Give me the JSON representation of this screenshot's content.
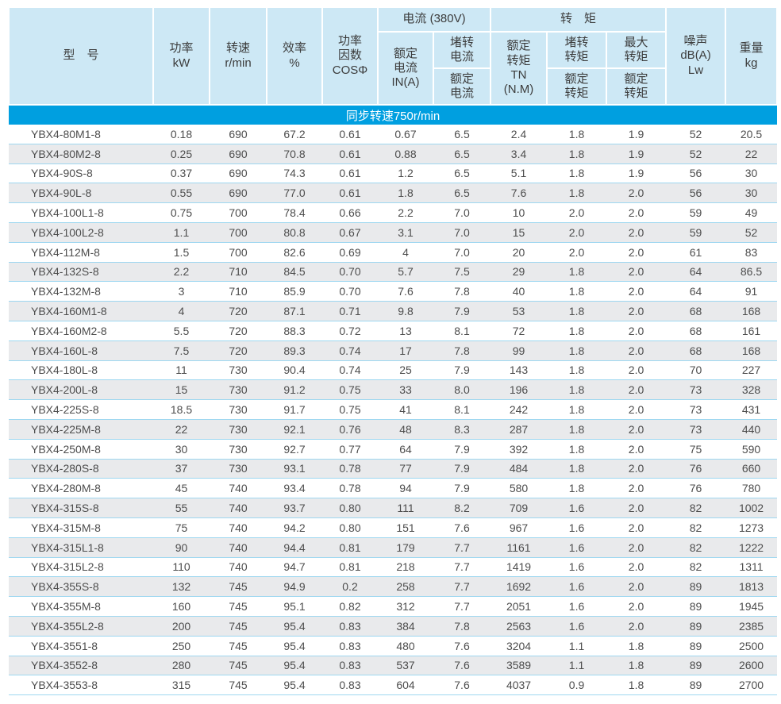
{
  "table": {
    "header": {
      "model": "型　号",
      "power": "功率\nkW",
      "speed": "转速\nr/min",
      "efficiency": "效率\n%",
      "power_factor": "功率\n因数\nCOSΦ",
      "current_group": "电流 (380V)",
      "rated_current": "额定\n电流\nIN(A)",
      "locked_current_top": "堵转\n电流",
      "locked_current_bottom": "额定\n电流",
      "torque_group": "转　矩",
      "rated_torque": "额定\n转矩\nTN\n(N.M)",
      "locked_torque_top": "堵转\n转矩",
      "locked_torque_bottom": "额定\n转矩",
      "max_torque_top": "最大\n转矩",
      "max_torque_bottom": "额定\n转矩",
      "noise": "噪声\ndB(A)\nLw",
      "weight": "重量\nkg"
    },
    "band_label": "同步转速750r/min",
    "rows": [
      [
        "YBX4-80M1-8",
        "0.18",
        "690",
        "67.2",
        "0.61",
        "0.67",
        "6.5",
        "2.4",
        "1.8",
        "1.9",
        "52",
        "20.5"
      ],
      [
        "YBX4-80M2-8",
        "0.25",
        "690",
        "70.8",
        "0.61",
        "0.88",
        "6.5",
        "3.4",
        "1.8",
        "1.9",
        "52",
        "22"
      ],
      [
        "YBX4-90S-8",
        "0.37",
        "690",
        "74.3",
        "0.61",
        "1.2",
        "6.5",
        "5.1",
        "1.8",
        "1.9",
        "56",
        "30"
      ],
      [
        "YBX4-90L-8",
        "0.55",
        "690",
        "77.0",
        "0.61",
        "1.8",
        "6.5",
        "7.6",
        "1.8",
        "2.0",
        "56",
        "30"
      ],
      [
        "YBX4-100L1-8",
        "0.75",
        "700",
        "78.4",
        "0.66",
        "2.2",
        "7.0",
        "10",
        "2.0",
        "2.0",
        "59",
        "49"
      ],
      [
        "YBX4-100L2-8",
        "1.1",
        "700",
        "80.8",
        "0.67",
        "3.1",
        "7.0",
        "15",
        "2.0",
        "2.0",
        "59",
        "52"
      ],
      [
        "YBX4-112M-8",
        "1.5",
        "700",
        "82.6",
        "0.69",
        "4",
        "7.0",
        "20",
        "2.0",
        "2.0",
        "61",
        "83"
      ],
      [
        "YBX4-132S-8",
        "2.2",
        "710",
        "84.5",
        "0.70",
        "5.7",
        "7.5",
        "29",
        "1.8",
        "2.0",
        "64",
        "86.5"
      ],
      [
        "YBX4-132M-8",
        "3",
        "710",
        "85.9",
        "0.70",
        "7.6",
        "7.8",
        "40",
        "1.8",
        "2.0",
        "64",
        "91"
      ],
      [
        "YBX4-160M1-8",
        "4",
        "720",
        "87.1",
        "0.71",
        "9.8",
        "7.9",
        "53",
        "1.8",
        "2.0",
        "68",
        "168"
      ],
      [
        "YBX4-160M2-8",
        "5.5",
        "720",
        "88.3",
        "0.72",
        "13",
        "8.1",
        "72",
        "1.8",
        "2.0",
        "68",
        "161"
      ],
      [
        "YBX4-160L-8",
        "7.5",
        "720",
        "89.3",
        "0.74",
        "17",
        "7.8",
        "99",
        "1.8",
        "2.0",
        "68",
        "168"
      ],
      [
        "YBX4-180L-8",
        "11",
        "730",
        "90.4",
        "0.74",
        "25",
        "7.9",
        "143",
        "1.8",
        "2.0",
        "70",
        "227"
      ],
      [
        "YBX4-200L-8",
        "15",
        "730",
        "91.2",
        "0.75",
        "33",
        "8.0",
        "196",
        "1.8",
        "2.0",
        "73",
        "328"
      ],
      [
        "YBX4-225S-8",
        "18.5",
        "730",
        "91.7",
        "0.75",
        "41",
        "8.1",
        "242",
        "1.8",
        "2.0",
        "73",
        "431"
      ],
      [
        "YBX4-225M-8",
        "22",
        "730",
        "92.1",
        "0.76",
        "48",
        "8.3",
        "287",
        "1.8",
        "2.0",
        "73",
        "440"
      ],
      [
        "YBX4-250M-8",
        "30",
        "730",
        "92.7",
        "0.77",
        "64",
        "7.9",
        "392",
        "1.8",
        "2.0",
        "75",
        "590"
      ],
      [
        "YBX4-280S-8",
        "37",
        "730",
        "93.1",
        "0.78",
        "77",
        "7.9",
        "484",
        "1.8",
        "2.0",
        "76",
        "660"
      ],
      [
        "YBX4-280M-8",
        "45",
        "740",
        "93.4",
        "0.78",
        "94",
        "7.9",
        "580",
        "1.8",
        "2.0",
        "76",
        "780"
      ],
      [
        "YBX4-315S-8",
        "55",
        "740",
        "93.7",
        "0.80",
        "111",
        "8.2",
        "709",
        "1.6",
        "2.0",
        "82",
        "1002"
      ],
      [
        "YBX4-315M-8",
        "75",
        "740",
        "94.2",
        "0.80",
        "151",
        "7.6",
        "967",
        "1.6",
        "2.0",
        "82",
        "1273"
      ],
      [
        "YBX4-315L1-8",
        "90",
        "740",
        "94.4",
        "0.81",
        "179",
        "7.7",
        "1161",
        "1.6",
        "2.0",
        "82",
        "1222"
      ],
      [
        "YBX4-315L2-8",
        "110",
        "740",
        "94.7",
        "0.81",
        "218",
        "7.7",
        "1419",
        "1.6",
        "2.0",
        "82",
        "1311"
      ],
      [
        "YBX4-355S-8",
        "132",
        "745",
        "94.9",
        "0.2",
        "258",
        "7.7",
        "1692",
        "1.6",
        "2.0",
        "89",
        "1813"
      ],
      [
        "YBX4-355M-8",
        "160",
        "745",
        "95.1",
        "0.82",
        "312",
        "7.7",
        "2051",
        "1.6",
        "2.0",
        "89",
        "1945"
      ],
      [
        "YBX4-355L2-8",
        "200",
        "745",
        "95.4",
        "0.83",
        "384",
        "7.8",
        "2563",
        "1.6",
        "2.0",
        "89",
        "2385"
      ],
      [
        "YBX4-3551-8",
        "250",
        "745",
        "95.4",
        "0.83",
        "480",
        "7.6",
        "3204",
        "1.1",
        "1.8",
        "89",
        "2500"
      ],
      [
        "YBX4-3552-8",
        "280",
        "745",
        "95.4",
        "0.83",
        "537",
        "7.6",
        "3589",
        "1.1",
        "1.8",
        "89",
        "2600"
      ],
      [
        "YBX4-3553-8",
        "315",
        "745",
        "95.4",
        "0.83",
        "604",
        "7.6",
        "4037",
        "0.9",
        "1.8",
        "89",
        "2700"
      ]
    ]
  },
  "colors": {
    "header_bg": "#cde8f5",
    "band_bg": "#009fe0",
    "band_text": "#ffffff",
    "stripe_bg": "#e9eaec",
    "row_line": "#9ed7f0",
    "header_text": "#3c3c3c",
    "body_text": "#4d4d4d"
  }
}
